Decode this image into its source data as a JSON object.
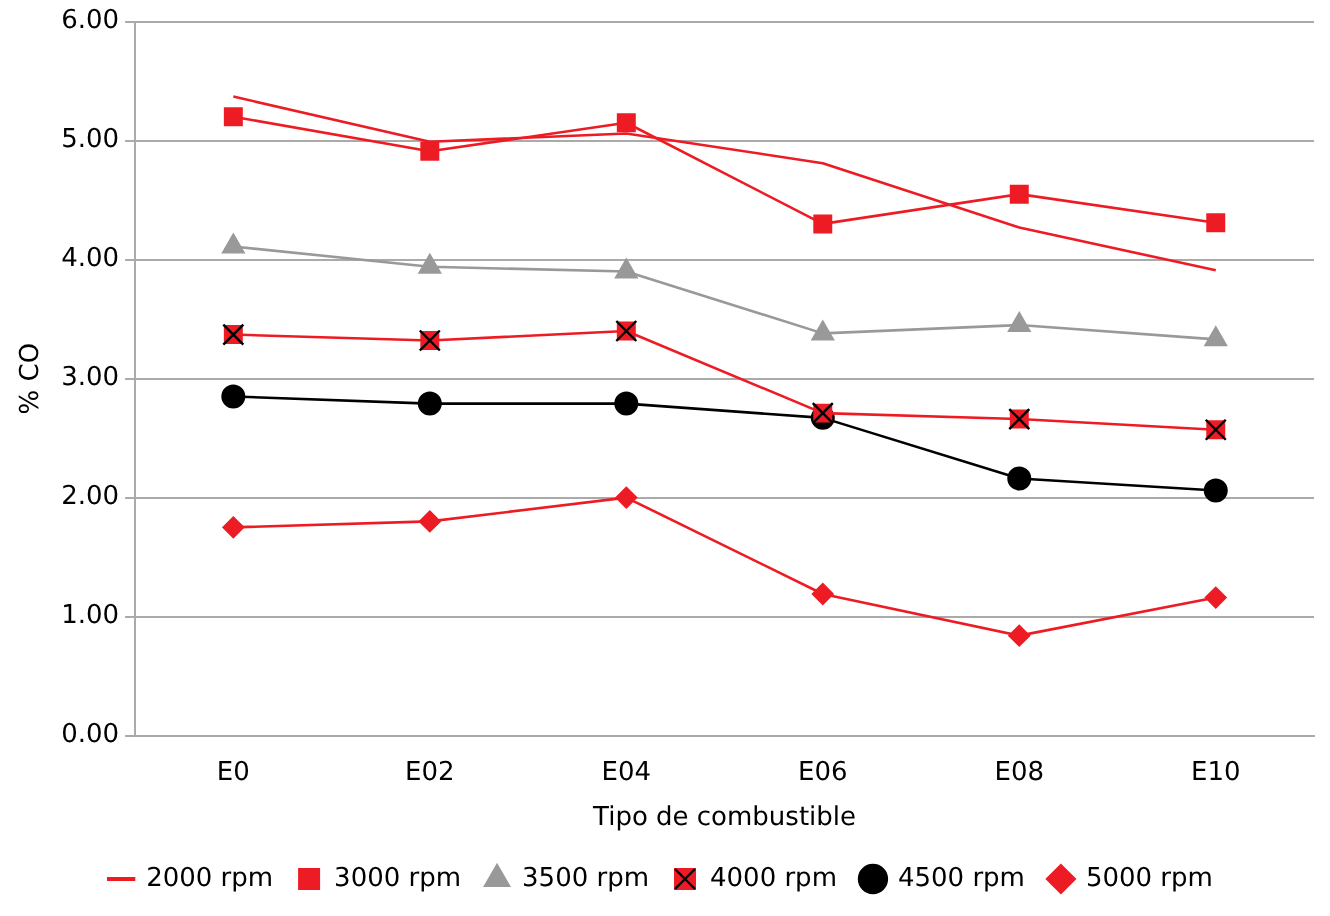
{
  "chart_data": {
    "type": "line",
    "xlabel": "Tipo de combustible",
    "ylabel": "% CO",
    "categories": [
      "E0",
      "E02",
      "E04",
      "E06",
      "E08",
      "E10"
    ],
    "series": [
      {
        "name": "2000 rpm",
        "color": "#ed1c24",
        "marker": "none",
        "values": [
          5.37,
          4.99,
          5.06,
          4.81,
          4.27,
          3.91
        ]
      },
      {
        "name": "3000 rpm",
        "color": "#ed1c24",
        "marker": "square",
        "values": [
          5.2,
          4.91,
          5.15,
          4.3,
          4.55,
          4.31
        ]
      },
      {
        "name": "3500 rpm",
        "color": "#999999",
        "marker": "triangle",
        "values": [
          4.11,
          3.94,
          3.9,
          3.38,
          3.45,
          3.33
        ]
      },
      {
        "name": "4000 rpm",
        "color": "#ed1c24",
        "marker": "square-x",
        "values": [
          3.37,
          3.32,
          3.4,
          2.71,
          2.66,
          2.57
        ]
      },
      {
        "name": "4500 rpm",
        "color": "#000000",
        "marker": "circle",
        "values": [
          2.85,
          2.79,
          2.79,
          2.67,
          2.16,
          2.06
        ]
      },
      {
        "name": "5000 rpm",
        "color": "#ed1c24",
        "marker": "diamond",
        "values": [
          1.75,
          1.8,
          2.0,
          1.19,
          0.84,
          1.16
        ]
      }
    ],
    "ylim": [
      0,
      6
    ],
    "yticks": [
      {
        "value": 0,
        "label": "0.00"
      },
      {
        "value": 1,
        "label": "1.00"
      },
      {
        "value": 2,
        "label": "2.00"
      },
      {
        "value": 3,
        "label": "3.00"
      },
      {
        "value": 4,
        "label": "4.00"
      },
      {
        "value": 5,
        "label": "5.00"
      },
      {
        "value": 6,
        "label": "6.00"
      }
    ],
    "grid": "y",
    "legend": "bottom"
  }
}
